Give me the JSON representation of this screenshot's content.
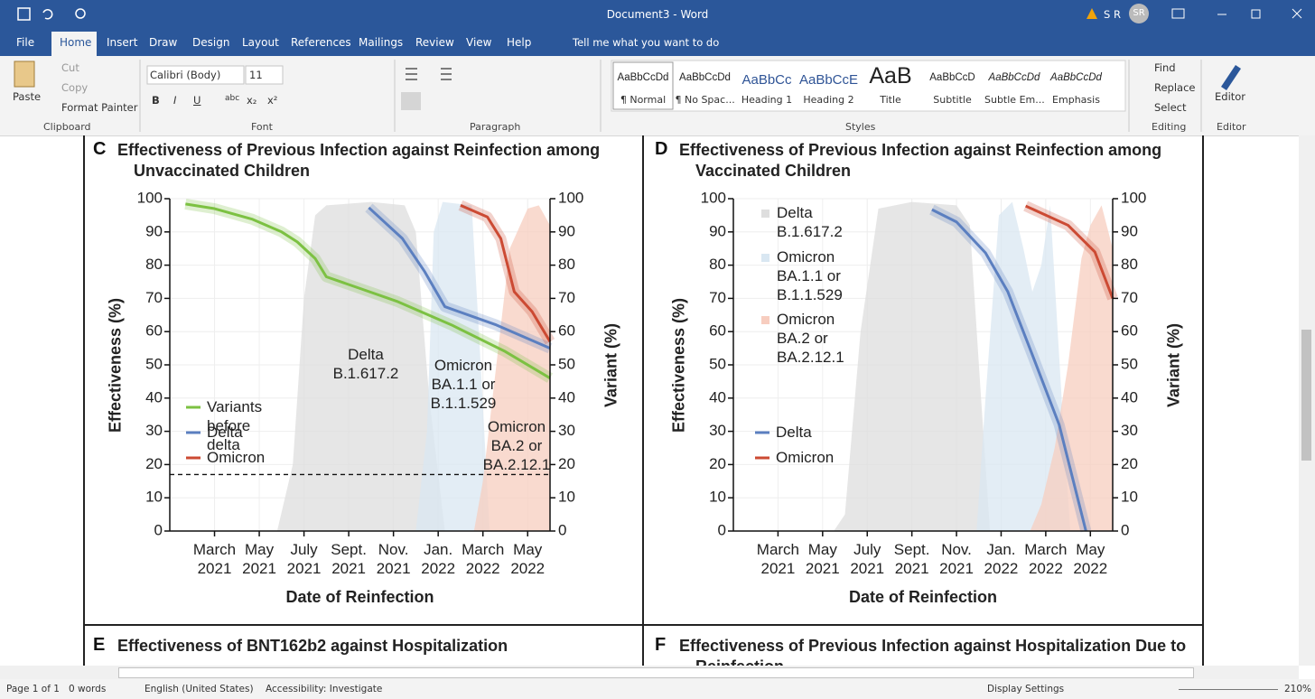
{
  "title_bar": {
    "document_title": "Document3  -  Word",
    "user": "S R",
    "avatar": "SR"
  },
  "tabs": [
    "File",
    "Home",
    "Insert",
    "Draw",
    "Design",
    "Layout",
    "References",
    "Mailings",
    "Review",
    "View",
    "Help"
  ],
  "active_tab": "Home",
  "tell_me": "Tell me what you want to do",
  "ribbon": {
    "clipboard": {
      "paste": "Paste",
      "cut": "Cut",
      "copy": "Copy",
      "format_painter": "Format Painter",
      "label": "Clipboard"
    },
    "font": {
      "name": "Calibri (Body)",
      "size": "11",
      "buttons": [
        "B",
        "I",
        "U",
        "abc",
        "x₂",
        "x²"
      ],
      "label": "Font"
    },
    "paragraph": {
      "label": "Paragraph"
    },
    "styles": {
      "items": [
        {
          "preview": "AaBbCcDd",
          "name": "¶ Normal"
        },
        {
          "preview": "AaBbCcDd",
          "name": "¶ No Spac..."
        },
        {
          "preview": "AaBbCc",
          "name": "Heading 1"
        },
        {
          "preview": "AaBbCcE",
          "name": "Heading 2"
        },
        {
          "preview": "AaB",
          "name": "Title"
        },
        {
          "preview": "AaBbCcD",
          "name": "Subtitle"
        },
        {
          "preview": "AaBbCcDd",
          "name": "Subtle Em..."
        },
        {
          "preview": "AaBbCcDd",
          "name": "Emphasis"
        }
      ],
      "label": "Styles"
    },
    "editing": {
      "find": "Find",
      "replace": "Replace",
      "select": "Select",
      "label": "Editing"
    },
    "editor": {
      "button": "Editor",
      "label": "Editor"
    }
  },
  "chart_data": [
    {
      "type": "line",
      "panel": "C",
      "title": "Effectiveness of Previous Infection against Reinfection among Unvaccinated Children",
      "x_label": "Date of Reinfection",
      "y_label": "Effectiveness (%)",
      "y2_label": "Variant (%)",
      "xlim": [
        0,
        17
      ],
      "xticks": [
        {
          "value": 2,
          "label": "March 2021"
        },
        {
          "value": 4,
          "label": "May 2021"
        },
        {
          "value": 6,
          "label": "July 2021"
        },
        {
          "value": 8,
          "label": "Sept. 2021"
        },
        {
          "value": 10,
          "label": "Nov. 2021"
        },
        {
          "value": 12,
          "label": "Jan. 2022"
        },
        {
          "value": 14,
          "label": "March 2022"
        },
        {
          "value": 16,
          "label": "May 2022"
        }
      ],
      "ylim": [
        0,
        100
      ],
      "yticks": [
        0,
        10,
        20,
        30,
        40,
        50,
        60,
        70,
        80,
        90,
        100
      ],
      "y2lim": [
        0,
        100
      ],
      "y2ticks": [
        0,
        10,
        20,
        30,
        40,
        50,
        60,
        70,
        80,
        90,
        100
      ],
      "grid": true,
      "area_labels": "annotation",
      "reference_line": 17,
      "series": [
        {
          "name": "Delta B.1.617.2",
          "type": "area",
          "axis": "y2",
          "color": "#dedede",
          "x": [
            4.8,
            5.5,
            6,
            6.5,
            7,
            9,
            10.5,
            11,
            11.6,
            12.3
          ],
          "values": [
            0,
            20,
            70,
            95,
            98,
            99,
            98,
            90,
            40,
            0
          ]
        },
        {
          "name": "Omicron BA.1.1 or B.1.1.529",
          "type": "area",
          "axis": "y2",
          "color": "#d9e7f2",
          "x": [
            11,
            11.5,
            11.8,
            12.2,
            13.5,
            13.9,
            14.3
          ],
          "values": [
            0,
            30,
            90,
            99,
            98,
            50,
            0
          ]
        },
        {
          "name": "Omicron BA.2 or BA.2.12.1",
          "type": "area",
          "axis": "y2",
          "color": "#f7cdbf",
          "x": [
            13.6,
            14,
            14.6,
            15.2,
            16,
            16.5,
            17
          ],
          "values": [
            0,
            15,
            50,
            85,
            97,
            98,
            92
          ]
        },
        {
          "name": "Variants before delta",
          "type": "line",
          "color": "#7cc142",
          "x": [
            0.7,
            2,
            3.7,
            5,
            5.7,
            6.5,
            7,
            8.5,
            10.2,
            12.6,
            15,
            17
          ],
          "values": [
            98.4,
            97,
            93.8,
            90,
            87,
            82,
            76.5,
            73,
            69,
            62,
            54,
            46
          ]
        },
        {
          "name": "Delta",
          "type": "line",
          "color": "#5b7fc0",
          "x": [
            8.9,
            10.4,
            11.4,
            12.3,
            14.6,
            17
          ],
          "values": [
            97.3,
            88,
            78,
            67.5,
            62,
            55
          ]
        },
        {
          "name": "Omicron",
          "type": "line",
          "color": "#cc4a33",
          "x": [
            13,
            14.2,
            14.8,
            15.4,
            16.2,
            17
          ],
          "values": [
            98,
            94.5,
            88,
            72,
            66,
            57
          ]
        }
      ]
    },
    {
      "type": "line",
      "panel": "D",
      "title": "Effectiveness of Previous Infection against Reinfection among Vaccinated Children",
      "x_label": "Date of Reinfection",
      "y_label": "Effectiveness (%)",
      "y2_label": "Variant (%)",
      "xlim": [
        0,
        17
      ],
      "xticks": [
        {
          "value": 2,
          "label": "March 2021"
        },
        {
          "value": 4,
          "label": "May 2021"
        },
        {
          "value": 6,
          "label": "July 2021"
        },
        {
          "value": 8,
          "label": "Sept. 2021"
        },
        {
          "value": 10,
          "label": "Nov. 2021"
        },
        {
          "value": 12,
          "label": "Jan. 2022"
        },
        {
          "value": 14,
          "label": "March 2022"
        },
        {
          "value": 16,
          "label": "May 2022"
        }
      ],
      "ylim": [
        0,
        100
      ],
      "yticks": [
        0,
        10,
        20,
        30,
        40,
        50,
        60,
        70,
        80,
        90,
        100
      ],
      "y2lim": [
        0,
        100
      ],
      "y2ticks": [
        0,
        10,
        20,
        30,
        40,
        50,
        60,
        70,
        80,
        90,
        100
      ],
      "grid": true,
      "area_labels": "legend",
      "series": [
        {
          "name": "Delta B.1.617.2",
          "type": "area",
          "axis": "y2",
          "color": "#dedede",
          "x": [
            4.5,
            5,
            5.7,
            6.5,
            8,
            10,
            10.6,
            11.1,
            11.5
          ],
          "values": [
            0,
            5,
            60,
            97,
            99,
            98,
            92,
            40,
            0
          ]
        },
        {
          "name": "Omicron BA.1.1 or B.1.1.529",
          "type": "area",
          "axis": "y2",
          "color": "#d9e7f2",
          "x": [
            10.9,
            11.3,
            11.9,
            12.5,
            13,
            13.4,
            13.8,
            14.2,
            14.8,
            15.1
          ],
          "values": [
            0,
            40,
            95,
            99,
            85,
            72,
            80,
            98,
            30,
            0
          ]
        },
        {
          "name": "Omicron BA.2 or BA.2.12.1",
          "type": "area",
          "axis": "y2",
          "color": "#f7cdbf",
          "x": [
            13.3,
            13.8,
            14.4,
            15,
            15.6,
            16,
            16.5,
            17
          ],
          "values": [
            0,
            8,
            25,
            50,
            82,
            92,
            98,
            85
          ]
        },
        {
          "name": "Delta",
          "type": "line",
          "color": "#5b7fc0",
          "x": [
            8.9,
            10,
            11.3,
            12.3,
            13.4,
            14.6,
            15.8
          ],
          "values": [
            96.7,
            93,
            83.7,
            72,
            53,
            32,
            0
          ]
        },
        {
          "name": "Omicron",
          "type": "line",
          "color": "#cc4a33",
          "x": [
            13.1,
            15,
            16.2,
            17
          ],
          "values": [
            97.8,
            92,
            84,
            70
          ]
        }
      ]
    }
  ],
  "document": {
    "more_panels": [
      {
        "letter": "E",
        "title": "Effectiveness of BNT162b2 against Hospitalization"
      },
      {
        "letter": "F",
        "title": "Effectiveness of Previous Infection against Hospitalization Due to Reinfection"
      }
    ]
  },
  "status_bar": {
    "page": "Page 1 of 1",
    "words": "0 words",
    "language": "English (United States)",
    "accessibility": "Accessibility: Investigate",
    "display": "Display Settings",
    "zoom": "210%"
  }
}
